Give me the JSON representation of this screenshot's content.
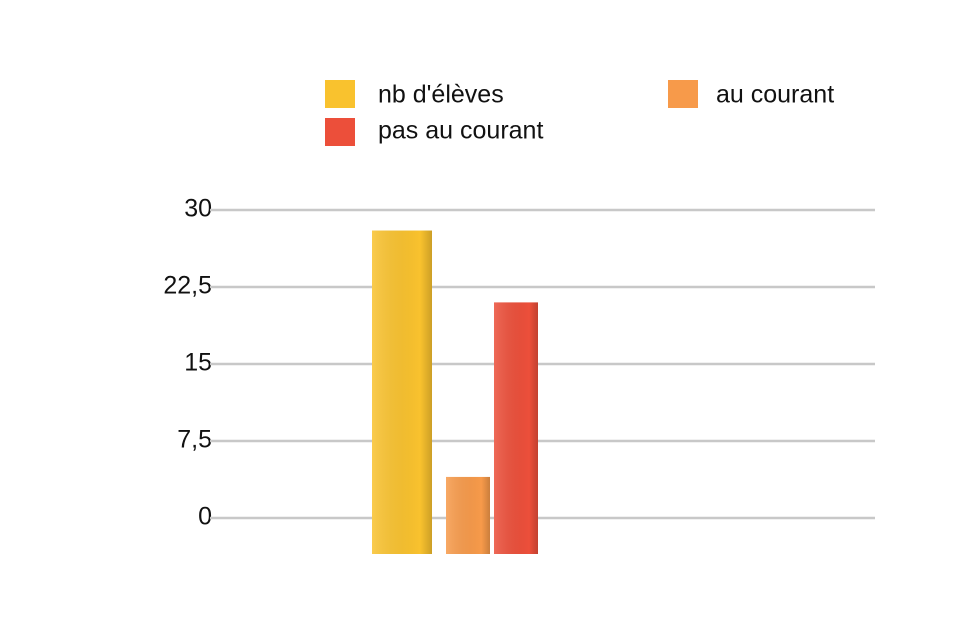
{
  "chart_data": {
    "type": "bar",
    "categories": [
      null
    ],
    "series": [
      {
        "name": "nb d'élèves",
        "color": "#f9c22e",
        "values": [
          28
        ]
      },
      {
        "name": "au courant",
        "color": "#f79a4a",
        "values": [
          4
        ]
      },
      {
        "name": "pas au courant",
        "color": "#ec4f3a",
        "values": [
          21
        ]
      }
    ],
    "ylim": [
      0,
      30
    ],
    "yticks": [
      0,
      {
        "value": 7.5,
        "label": "7,5"
      },
      15,
      {
        "value": 22.5,
        "label": "22,5"
      },
      30
    ],
    "grid": true
  }
}
